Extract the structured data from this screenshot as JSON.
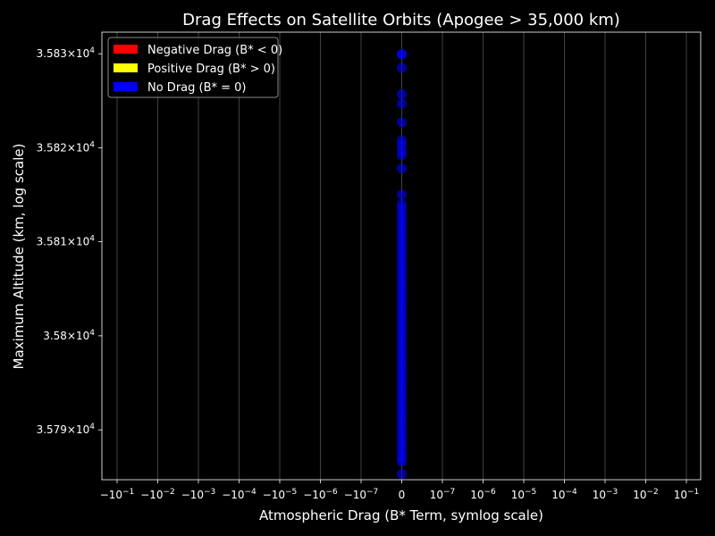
{
  "chart_data": {
    "type": "scatter",
    "title": "Drag Effects on Satellite Orbits (Apogee > 35,000 km)",
    "xlabel": "Atmospheric Drag (B* Term, symlog scale)",
    "ylabel": "Maximum Altitude (km, log scale)",
    "x_scale": "symlog",
    "y_scale": "log",
    "ylim": [
      35784.7,
      35832.3
    ],
    "x_ticks": [
      {
        "mant": "−10",
        "exp": "−1"
      },
      {
        "mant": "−10",
        "exp": "−2"
      },
      {
        "mant": "−10",
        "exp": "−3"
      },
      {
        "mant": "−10",
        "exp": "−4"
      },
      {
        "mant": "−10",
        "exp": "−5"
      },
      {
        "mant": "−10",
        "exp": "−6"
      },
      {
        "mant": "−10",
        "exp": "−7"
      },
      {
        "mant": "0",
        "exp": ""
      },
      {
        "mant": "10",
        "exp": "−7"
      },
      {
        "mant": "10",
        "exp": "−6"
      },
      {
        "mant": "10",
        "exp": "−5"
      },
      {
        "mant": "10",
        "exp": "−4"
      },
      {
        "mant": "10",
        "exp": "−3"
      },
      {
        "mant": "10",
        "exp": "−2"
      },
      {
        "mant": "10",
        "exp": "−1"
      }
    ],
    "y_ticks": [
      {
        "value": 35830,
        "mant": "3.583",
        "exp": "4"
      },
      {
        "value": 35820,
        "mant": "3.582",
        "exp": "4"
      },
      {
        "value": 35810,
        "mant": "3.581",
        "exp": "4"
      },
      {
        "value": 35800,
        "mant": "3.58",
        "exp": "4"
      },
      {
        "value": 35790,
        "mant": "3.579",
        "exp": "4"
      }
    ],
    "legend_position": "top-left",
    "grid": "vertical",
    "series": [
      {
        "name": "Negative Drag (B* < 0)",
        "color": "#ff0000",
        "points": []
      },
      {
        "name": "Positive Drag (B* > 0)",
        "color": "#ffff00",
        "points": []
      },
      {
        "name": "No Drag (B* = 0)",
        "color": "#0000ff",
        "points": [
          [
            0,
            35830.0
          ],
          [
            0,
            35829.9
          ],
          [
            0,
            35828.5
          ],
          [
            0,
            35825.7
          ],
          [
            0,
            35824.7
          ],
          [
            0,
            35822.7
          ],
          [
            0,
            35820.8
          ],
          [
            0,
            35820.3
          ],
          [
            0,
            35819.7
          ],
          [
            0,
            35819.2
          ],
          [
            0,
            35817.8
          ],
          [
            0,
            35815.0
          ],
          [
            0,
            35814.0
          ],
          [
            0,
            35813.5
          ],
          [
            0,
            35813.0
          ],
          [
            0,
            35812.5
          ],
          [
            0,
            35812.0
          ],
          [
            0,
            35811.5
          ],
          [
            0,
            35811.0
          ],
          [
            0,
            35810.5
          ],
          [
            0,
            35810.0
          ],
          [
            0,
            35809.5
          ],
          [
            0,
            35809.0
          ],
          [
            0,
            35808.5
          ],
          [
            0,
            35808.0
          ],
          [
            0,
            35807.5
          ],
          [
            0,
            35807.0
          ],
          [
            0,
            35806.5
          ],
          [
            0,
            35806.0
          ],
          [
            0,
            35805.5
          ],
          [
            0,
            35805.0
          ],
          [
            0,
            35804.5
          ],
          [
            0,
            35804.0
          ],
          [
            0,
            35803.5
          ],
          [
            0,
            35803.0
          ],
          [
            0,
            35802.5
          ],
          [
            0,
            35802.0
          ],
          [
            0,
            35801.5
          ],
          [
            0,
            35801.0
          ],
          [
            0,
            35800.5
          ],
          [
            0,
            35800.0
          ],
          [
            0,
            35799.5
          ],
          [
            0,
            35799.0
          ],
          [
            0,
            35798.5
          ],
          [
            0,
            35798.0
          ],
          [
            0,
            35797.5
          ],
          [
            0,
            35797.0
          ],
          [
            0,
            35796.5
          ],
          [
            0,
            35796.0
          ],
          [
            0,
            35795.5
          ],
          [
            0,
            35795.0
          ],
          [
            0,
            35794.5
          ],
          [
            0,
            35794.0
          ],
          [
            0,
            35793.5
          ],
          [
            0,
            35793.0
          ],
          [
            0,
            35792.5
          ],
          [
            0,
            35792.0
          ],
          [
            0,
            35791.5
          ],
          [
            0,
            35791.0
          ],
          [
            0,
            35790.5
          ],
          [
            0,
            35790.0
          ],
          [
            0,
            35789.5
          ],
          [
            0,
            35789.0
          ],
          [
            0,
            35788.5
          ],
          [
            0,
            35788.0
          ],
          [
            0,
            35787.5
          ],
          [
            0,
            35787.0
          ],
          [
            0,
            35786.6
          ],
          [
            0,
            35785.3
          ]
        ]
      }
    ]
  }
}
